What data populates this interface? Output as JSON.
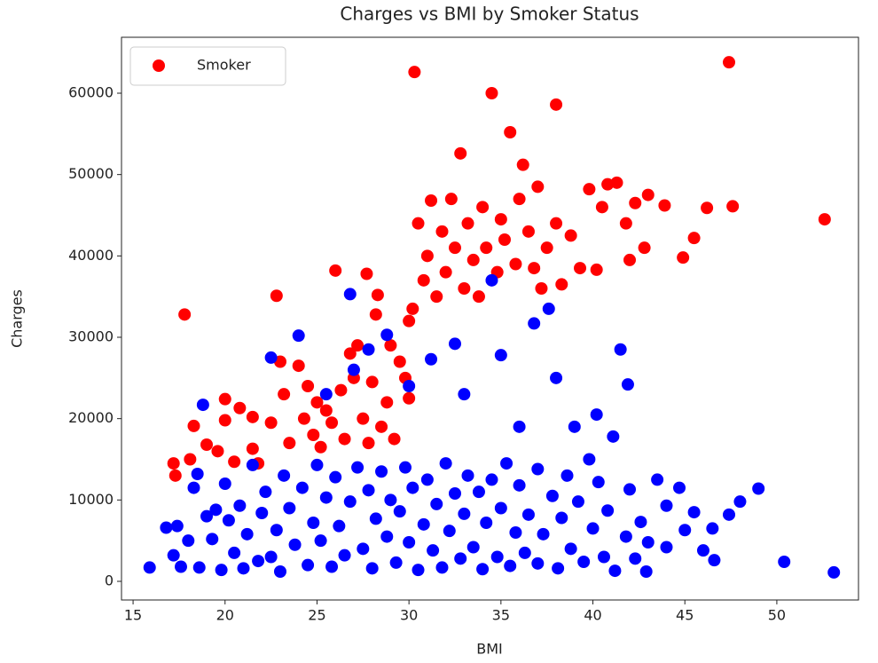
{
  "chart_data": {
    "type": "scatter",
    "title": "Charges vs BMI by Smoker Status",
    "x_label": "BMI",
    "y_label": "Charges",
    "xlim": [
      14.37,
      54.44
    ],
    "ylim": [
      -2291,
      66873
    ],
    "xticks": [
      15,
      20,
      25,
      30,
      35,
      40,
      45,
      50
    ],
    "yticks": [
      0,
      10000,
      20000,
      30000,
      40000,
      50000,
      60000
    ],
    "grid": false,
    "legend": "upper-left",
    "series": [
      {
        "name": "Smoker",
        "color": "#ff0000",
        "x": [
          17.2,
          17.3,
          17.8,
          18.1,
          18.3,
          19,
          19.6,
          20,
          20,
          20.5,
          20.8,
          21.5,
          21.5,
          21.8,
          22.5,
          22.8,
          23,
          23.2,
          23.5,
          24,
          24.3,
          24.5,
          24.8,
          25,
          25.2,
          25.5,
          25.8,
          26,
          26.3,
          26.5,
          26.8,
          27,
          27.2,
          27.5,
          27.7,
          27.8,
          28,
          28.2,
          28.3,
          28.5,
          28.8,
          29,
          29.2,
          29.5,
          29.8,
          30,
          30,
          30.2,
          30.3,
          30.5,
          30.8,
          31,
          31.2,
          31.5,
          31.8,
          32,
          32.3,
          32.5,
          32.8,
          33,
          33.2,
          33.5,
          33.8,
          34,
          34.2,
          34.5,
          34.8,
          35,
          35.2,
          35.5,
          35.8,
          36,
          36.2,
          36.5,
          36.8,
          37,
          37.2,
          37.5,
          38,
          38,
          38.3,
          38.8,
          39.3,
          39.8,
          40.2,
          40.5,
          40.8,
          41.3,
          41.8,
          42,
          42.3,
          42.8,
          43,
          43.9,
          44.9,
          45.5,
          46.2,
          47.4,
          47.6,
          52.6
        ],
        "values": [
          14500,
          13000,
          32800,
          15000,
          19100,
          16800,
          16000,
          22400,
          19800,
          14700,
          21300,
          20200,
          16300,
          14500,
          19500,
          35100,
          27000,
          23000,
          17000,
          26500,
          20000,
          24000,
          18000,
          22000,
          16500,
          21000,
          19500,
          38200,
          23500,
          17500,
          28000,
          25000,
          29000,
          20000,
          37800,
          17000,
          24500,
          32800,
          35200,
          19000,
          22000,
          29000,
          17500,
          27000,
          25000,
          22500,
          32000,
          33500,
          62600,
          44000,
          37000,
          40000,
          46800,
          35000,
          43000,
          38000,
          47000,
          41000,
          52600,
          36000,
          44000,
          39500,
          35000,
          46000,
          41000,
          60000,
          38000,
          44500,
          42000,
          55200,
          39000,
          47000,
          51200,
          43000,
          38500,
          48500,
          36000,
          41000,
          58600,
          44000,
          36500,
          42500,
          38500,
          48200,
          38300,
          46000,
          48800,
          49000,
          44000,
          39500,
          46500,
          41000,
          47500,
          46200,
          39800,
          42200,
          45900,
          63800,
          46100,
          44500
        ]
      },
      {
        "color": "#0000ff",
        "x": [
          15.9,
          16.8,
          17.2,
          17.4,
          17.6,
          18,
          18.3,
          18.5,
          18.6,
          18.8,
          19,
          19.3,
          19.5,
          19.8,
          20,
          20.2,
          20.5,
          20.8,
          21,
          21.2,
          21.5,
          21.8,
          22,
          22.2,
          22.5,
          22.5,
          22.8,
          23,
          23.2,
          23.5,
          23.8,
          24,
          24.2,
          24.5,
          24.8,
          25,
          25.2,
          25.5,
          25.5,
          25.8,
          26,
          26.2,
          26.5,
          26.8,
          26.8,
          27,
          27.2,
          27.5,
          27.8,
          27.8,
          28,
          28.2,
          28.5,
          28.8,
          28.8,
          29,
          29.3,
          29.5,
          29.8,
          30,
          30,
          30.2,
          30.5,
          30.8,
          31,
          31.2,
          31.3,
          31.5,
          31.8,
          32,
          32.2,
          32.5,
          32.5,
          32.8,
          33,
          33,
          33.2,
          33.5,
          33.8,
          34,
          34.2,
          34.5,
          34.5,
          34.8,
          35,
          35,
          35.3,
          35.5,
          35.8,
          36,
          36,
          36.3,
          36.5,
          36.8,
          37,
          37,
          37.3,
          37.6,
          37.8,
          38,
          38.1,
          38.3,
          38.6,
          38.8,
          39,
          39.2,
          39.5,
          39.8,
          40,
          40.2,
          40.3,
          40.6,
          40.8,
          41.1,
          41.2,
          41.5,
          41.8,
          41.9,
          42,
          42.3,
          42.6,
          42.9,
          43,
          43.5,
          44,
          44,
          44.7,
          45,
          45.5,
          46,
          46.5,
          46.6,
          47.4,
          48,
          49,
          50.4,
          53.1
        ],
        "values": [
          1700,
          6600,
          3200,
          6800,
          1800,
          5000,
          11500,
          13200,
          1700,
          21700,
          8000,
          5200,
          8800,
          1400,
          12000,
          7500,
          3500,
          9300,
          1600,
          5800,
          14300,
          2500,
          8400,
          11000,
          3000,
          27500,
          6300,
          1200,
          13000,
          9000,
          4500,
          30200,
          11500,
          2000,
          7200,
          14300,
          5000,
          10300,
          23000,
          1800,
          12800,
          6800,
          3200,
          35300,
          9800,
          26000,
          14000,
          4000,
          28500,
          11200,
          1600,
          7700,
          13500,
          30300,
          5500,
          10000,
          2300,
          8600,
          14000,
          24000,
          4800,
          11500,
          1400,
          7000,
          12500,
          27300,
          3800,
          9500,
          1700,
          14500,
          6200,
          29200,
          10800,
          2800,
          23000,
          8300,
          13000,
          4200,
          11000,
          1500,
          7200,
          37000,
          12500,
          3000,
          27800,
          9000,
          14500,
          1900,
          6000,
          19000,
          11800,
          3500,
          8200,
          31700,
          13800,
          2200,
          5800,
          33500,
          10500,
          25000,
          1600,
          7800,
          13000,
          4000,
          19000,
          9800,
          2400,
          15000,
          6500,
          20500,
          12200,
          3000,
          8700,
          17800,
          1300,
          28500,
          5500,
          24200,
          11300,
          2800,
          7300,
          1200,
          4800,
          12500,
          4200,
          9300,
          11500,
          6300,
          8500,
          3800,
          6500,
          2600,
          8200,
          9800,
          11400,
          2400,
          1100
        ]
      }
    ]
  }
}
